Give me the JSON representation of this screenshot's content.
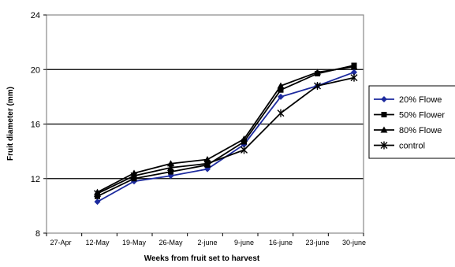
{
  "chart_data": {
    "type": "line",
    "xlabel": "Weeks from fruit set to harvest",
    "ylabel": "Fruit diameter (mm)",
    "categories": [
      "27-Apr",
      "12-May",
      "19-May",
      "26-May",
      "2-june",
      "9-june",
      "16-june",
      "23-june",
      "30-june"
    ],
    "ylim": [
      8,
      24
    ],
    "yticks": [
      8,
      12,
      16,
      20,
      24
    ],
    "grid": "horizontal",
    "legend_position": "right",
    "series": [
      {
        "name": "20% Flowe",
        "color": "#1c2a9e",
        "marker": "diamond",
        "values": [
          null,
          10.3,
          11.8,
          12.2,
          12.7,
          14.5,
          18.0,
          18.8,
          19.8
        ]
      },
      {
        "name": "50% Flower",
        "color": "#000000",
        "marker": "square",
        "values": [
          null,
          10.7,
          12.0,
          12.5,
          13.0,
          14.7,
          18.5,
          19.7,
          20.3
        ]
      },
      {
        "name": "80% Flowe",
        "color": "#000000",
        "marker": "triangle",
        "values": [
          null,
          11.0,
          12.4,
          13.1,
          13.4,
          14.9,
          18.8,
          19.8,
          20.2
        ]
      },
      {
        "name": "control",
        "color": "#000000",
        "marker": "star",
        "values": [
          null,
          10.9,
          12.2,
          12.8,
          13.1,
          14.1,
          16.8,
          18.8,
          19.4
        ]
      }
    ]
  }
}
